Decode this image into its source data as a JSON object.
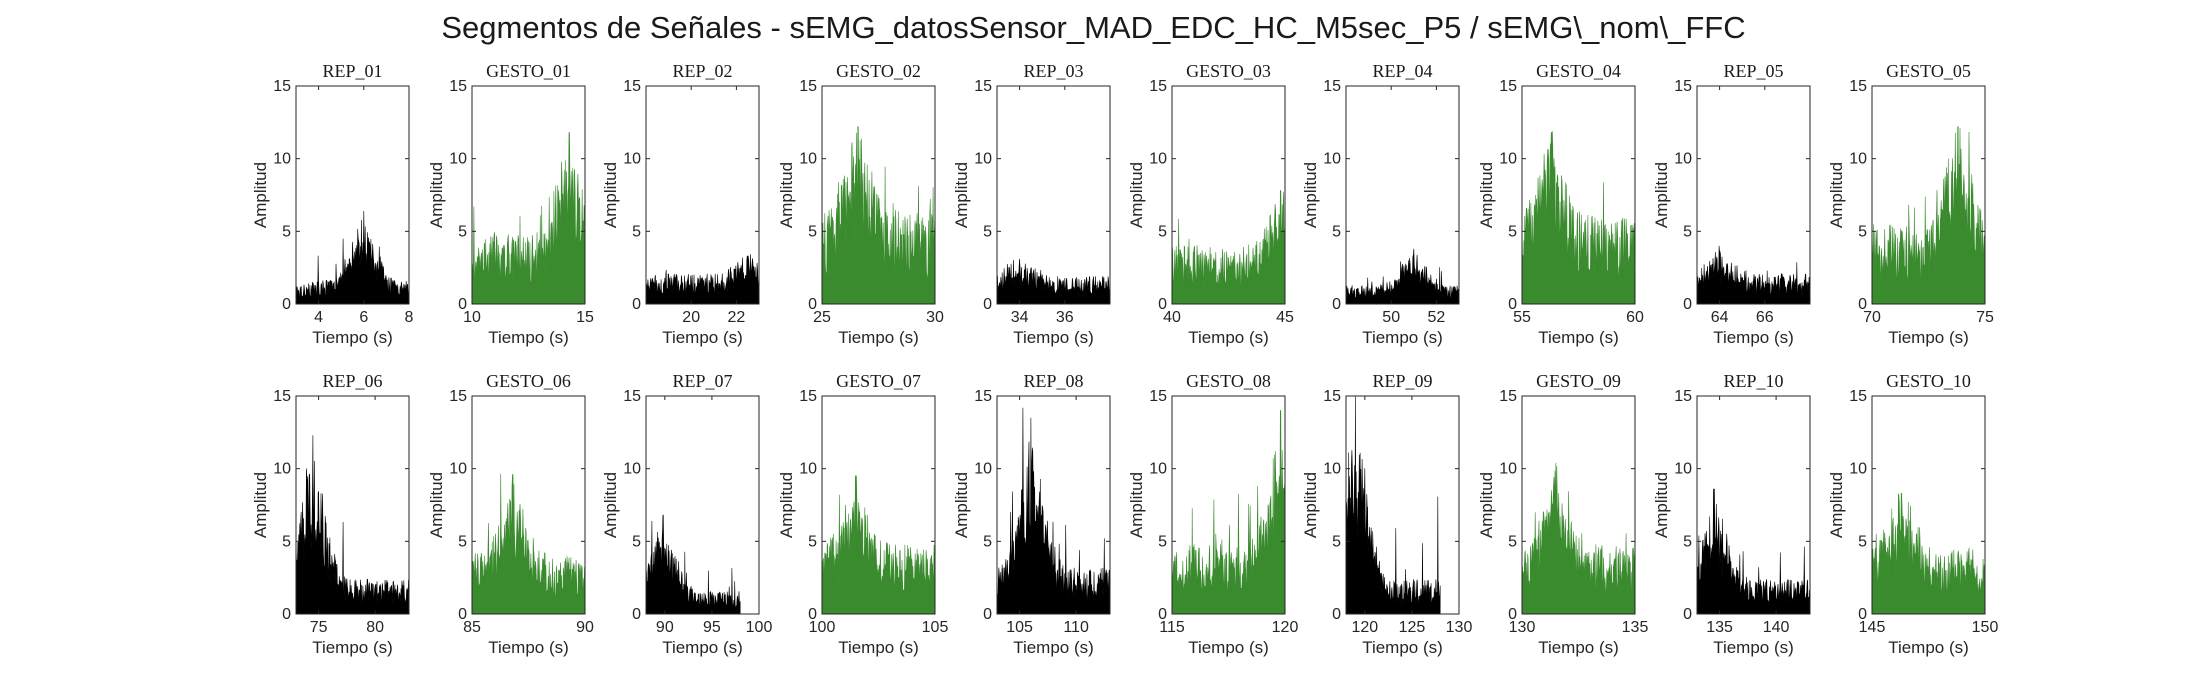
{
  "title": "Segmentos de Señales - sEMG_datosSensor_MAD_EDC_HC_M5sec_P5 / sEMG\\_nom\\_FFC",
  "colors": {
    "rep": "#000000",
    "gesto": "#3a8a2e"
  },
  "chart_data": [
    {
      "type": "area",
      "title": "REP_01",
      "xlabel": "Tiempo (s)",
      "ylabel": "Amplitud",
      "xlim": [
        3,
        8
      ],
      "ylim": [
        0,
        15
      ],
      "xticks": [
        4,
        6,
        8
      ],
      "yticks": [
        0,
        5,
        10,
        15
      ],
      "series_color": "rep",
      "x_range": [
        3,
        8
      ],
      "baseline": 1.0,
      "peak": 6.4,
      "peak_at": 6.0
    },
    {
      "type": "area",
      "title": "GESTO_01",
      "xlabel": "Tiempo (s)",
      "ylabel": "Amplitud",
      "xlim": [
        10,
        15
      ],
      "ylim": [
        0,
        15
      ],
      "xticks": [
        10,
        15
      ],
      "yticks": [
        0,
        5,
        10,
        15
      ],
      "series_color": "gesto",
      "x_range": [
        10,
        15
      ],
      "baseline": 3.0,
      "peak": 11.8,
      "peak_at": 14.3
    },
    {
      "type": "area",
      "title": "REP_02",
      "xlabel": "Tiempo (s)",
      "ylabel": "Amplitud",
      "xlim": [
        18,
        23
      ],
      "ylim": [
        0,
        15
      ],
      "xticks": [
        20,
        22
      ],
      "yticks": [
        0,
        5,
        10,
        15
      ],
      "series_color": "rep",
      "x_range": [
        18,
        23
      ],
      "baseline": 1.3,
      "peak": 3.3,
      "peak_at": 22.5
    },
    {
      "type": "area",
      "title": "GESTO_02",
      "xlabel": "Tiempo (s)",
      "ylabel": "Amplitud",
      "xlim": [
        25,
        30
      ],
      "ylim": [
        0,
        15
      ],
      "xticks": [
        25,
        30
      ],
      "yticks": [
        0,
        5,
        10,
        15
      ],
      "series_color": "gesto",
      "x_range": [
        25,
        30
      ],
      "baseline": 4.0,
      "peak": 12.2,
      "peak_at": 26.6
    },
    {
      "type": "area",
      "title": "REP_03",
      "xlabel": "Tiempo (s)",
      "ylabel": "Amplitud",
      "xlim": [
        33,
        38
      ],
      "ylim": [
        0,
        15
      ],
      "xticks": [
        34,
        36
      ],
      "yticks": [
        0,
        5,
        10,
        15
      ],
      "series_color": "rep",
      "x_range": [
        33,
        38
      ],
      "baseline": 1.2,
      "peak": 3.1,
      "peak_at": 34.0
    },
    {
      "type": "area",
      "title": "GESTO_03",
      "xlabel": "Tiempo (s)",
      "ylabel": "Amplitud",
      "xlim": [
        40,
        45
      ],
      "ylim": [
        0,
        15
      ],
      "xticks": [
        40,
        45
      ],
      "yticks": [
        0,
        5,
        10,
        15
      ],
      "series_color": "gesto",
      "x_range": [
        40,
        45
      ],
      "baseline": 2.5,
      "peak": 7.8,
      "peak_at": 44.8
    },
    {
      "type": "area",
      "title": "REP_04",
      "xlabel": "Tiempo (s)",
      "ylabel": "Amplitud",
      "xlim": [
        48,
        53
      ],
      "ylim": [
        0,
        15
      ],
      "xticks": [
        50,
        52
      ],
      "yticks": [
        0,
        5,
        10,
        15
      ],
      "series_color": "rep",
      "x_range": [
        48,
        53
      ],
      "baseline": 0.8,
      "peak": 3.8,
      "peak_at": 51.0
    },
    {
      "type": "area",
      "title": "GESTO_04",
      "xlabel": "Tiempo (s)",
      "ylabel": "Amplitud",
      "xlim": [
        55,
        60
      ],
      "ylim": [
        0,
        15
      ],
      "xticks": [
        55,
        60
      ],
      "yticks": [
        0,
        5,
        10,
        15
      ],
      "series_color": "gesto",
      "x_range": [
        55,
        60
      ],
      "baseline": 3.8,
      "peak": 11.8,
      "peak_at": 56.3
    },
    {
      "type": "area",
      "title": "REP_05",
      "xlabel": "Tiempo (s)",
      "ylabel": "Amplitud",
      "xlim": [
        63,
        68
      ],
      "ylim": [
        0,
        15
      ],
      "xticks": [
        64,
        66
      ],
      "yticks": [
        0,
        5,
        10,
        15
      ],
      "series_color": "rep",
      "x_range": [
        63,
        68
      ],
      "baseline": 1.3,
      "peak": 3.6,
      "peak_at": 64.0
    },
    {
      "type": "area",
      "title": "GESTO_05",
      "xlabel": "Tiempo (s)",
      "ylabel": "Amplitud",
      "xlim": [
        70,
        75
      ],
      "ylim": [
        0,
        15
      ],
      "xticks": [
        70,
        75
      ],
      "yticks": [
        0,
        5,
        10,
        15
      ],
      "series_color": "gesto",
      "x_range": [
        70,
        75
      ],
      "baseline": 3.5,
      "peak": 12.2,
      "peak_at": 73.8
    },
    {
      "type": "area",
      "title": "REP_06",
      "xlabel": "Tiempo (s)",
      "ylabel": "Amplitud",
      "xlim": [
        73,
        83
      ],
      "ylim": [
        0,
        15
      ],
      "xticks": [
        75,
        80
      ],
      "yticks": [
        0,
        5,
        10,
        15
      ],
      "series_color": "rep",
      "x_range": [
        73,
        83
      ],
      "baseline": 1.5,
      "peak": 12.3,
      "peak_at": 74.5
    },
    {
      "type": "area",
      "title": "GESTO_06",
      "xlabel": "Tiempo (s)",
      "ylabel": "Amplitud",
      "xlim": [
        85,
        90
      ],
      "ylim": [
        0,
        15
      ],
      "xticks": [
        85,
        90
      ],
      "yticks": [
        0,
        5,
        10,
        15
      ],
      "series_color": "gesto",
      "x_range": [
        85,
        90
      ],
      "baseline": 2.5,
      "peak": 9.6,
      "peak_at": 86.8
    },
    {
      "type": "area",
      "title": "REP_07",
      "xlabel": "Tiempo (s)",
      "ylabel": "Amplitud",
      "xlim": [
        88,
        100
      ],
      "ylim": [
        0,
        15
      ],
      "xticks": [
        90,
        95,
        100
      ],
      "yticks": [
        0,
        5,
        10,
        15
      ],
      "series_color": "rep",
      "x_range": [
        88,
        98
      ],
      "baseline": 1.0,
      "peak": 6.8,
      "peak_at": 89.8
    },
    {
      "type": "area",
      "title": "GESTO_07",
      "xlabel": "Tiempo (s)",
      "ylabel": "Amplitud",
      "xlim": [
        100,
        105
      ],
      "ylim": [
        0,
        15
      ],
      "xticks": [
        100,
        105
      ],
      "yticks": [
        0,
        5,
        10,
        15
      ],
      "series_color": "gesto",
      "x_range": [
        100,
        105
      ],
      "baseline": 3.0,
      "peak": 9.5,
      "peak_at": 101.5
    },
    {
      "type": "area",
      "title": "REP_08",
      "xlabel": "Tiempo (s)",
      "ylabel": "Amplitud",
      "xlim": [
        103,
        113
      ],
      "ylim": [
        0,
        15
      ],
      "xticks": [
        105,
        110
      ],
      "yticks": [
        0,
        5,
        10,
        15
      ],
      "series_color": "rep",
      "x_range": [
        103,
        113
      ],
      "baseline": 2.0,
      "peak": 13.5,
      "peak_at": 106.0
    },
    {
      "type": "area",
      "title": "GESTO_08",
      "xlabel": "Tiempo (s)",
      "ylabel": "Amplitud",
      "xlim": [
        115,
        120
      ],
      "ylim": [
        0,
        15
      ],
      "xticks": [
        115,
        120
      ],
      "yticks": [
        0,
        5,
        10,
        15
      ],
      "series_color": "gesto",
      "x_range": [
        115,
        120
      ],
      "baseline": 3.0,
      "peak": 14.0,
      "peak_at": 119.8
    },
    {
      "type": "area",
      "title": "REP_09",
      "xlabel": "Tiempo (s)",
      "ylabel": "Amplitud",
      "xlim": [
        118,
        130
      ],
      "ylim": [
        0,
        15
      ],
      "xticks": [
        120,
        125,
        130
      ],
      "yticks": [
        0,
        5,
        10,
        15
      ],
      "series_color": "rep",
      "x_range": [
        118,
        128
      ],
      "baseline": 1.5,
      "peak": 15.0,
      "peak_at": 119.0
    },
    {
      "type": "area",
      "title": "GESTO_09",
      "xlabel": "Tiempo (s)",
      "ylabel": "Amplitud",
      "xlim": [
        130,
        135
      ],
      "ylim": [
        0,
        15
      ],
      "xticks": [
        130,
        135
      ],
      "yticks": [
        0,
        5,
        10,
        15
      ],
      "series_color": "gesto",
      "x_range": [
        130,
        135
      ],
      "baseline": 3.0,
      "peak": 10.4,
      "peak_at": 131.5
    },
    {
      "type": "area",
      "title": "REP_10",
      "xlabel": "Tiempo (s)",
      "ylabel": "Amplitud",
      "xlim": [
        133,
        143
      ],
      "ylim": [
        0,
        15
      ],
      "xticks": [
        135,
        140
      ],
      "yticks": [
        0,
        5,
        10,
        15
      ],
      "series_color": "rep",
      "x_range": [
        133,
        143
      ],
      "baseline": 1.5,
      "peak": 8.6,
      "peak_at": 134.5
    },
    {
      "type": "area",
      "title": "GESTO_10",
      "xlabel": "Tiempo (s)",
      "ylabel": "Amplitud",
      "xlim": [
        145,
        150
      ],
      "ylim": [
        0,
        15
      ],
      "xticks": [
        145,
        150
      ],
      "yticks": [
        0,
        5,
        10,
        15
      ],
      "series_color": "gesto",
      "x_range": [
        145,
        150
      ],
      "baseline": 2.8,
      "peak": 8.3,
      "peak_at": 146.3
    }
  ]
}
